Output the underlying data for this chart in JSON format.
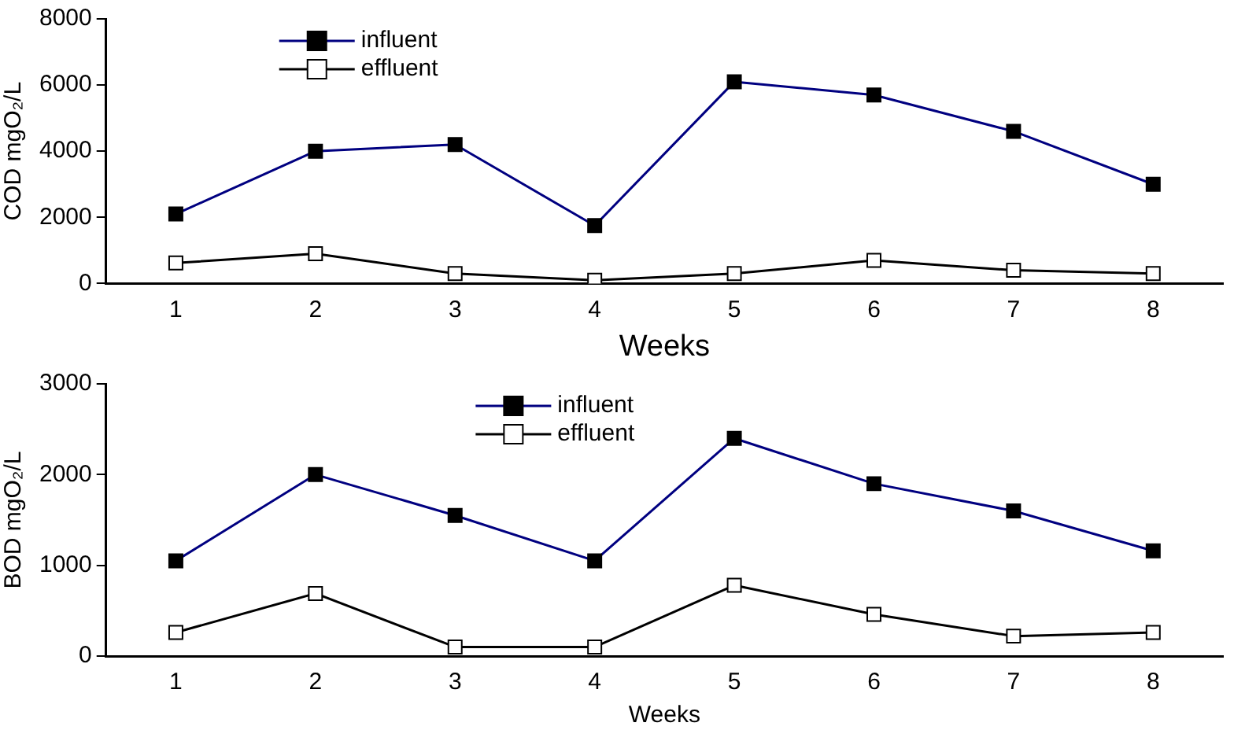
{
  "chart_data": [
    {
      "type": "line",
      "xlabel": "Weeks",
      "ylabel": "COD mgO₂/L",
      "categories": [
        "1",
        "2",
        "3",
        "4",
        "5",
        "6",
        "7",
        "8"
      ],
      "ylim": [
        0,
        8000
      ],
      "yticks": [
        0,
        2000,
        4000,
        6000,
        8000
      ],
      "grid": false,
      "legend": "top left",
      "marker": "square",
      "line_style": "solid",
      "series": [
        {
          "name": "influent",
          "color": "#000080",
          "values": [
            2100,
            4000,
            4200,
            1750,
            6100,
            5700,
            4600,
            3000
          ]
        },
        {
          "name": "effluent",
          "color": "#000000",
          "values": [
            620,
            900,
            300,
            100,
            300,
            700,
            400,
            300
          ]
        }
      ]
    },
    {
      "type": "line",
      "xlabel": "Weeks",
      "ylabel": "BOD mgO₂/L",
      "categories": [
        "1",
        "2",
        "3",
        "4",
        "5",
        "6",
        "7",
        "8"
      ],
      "ylim": [
        0,
        3000
      ],
      "yticks": [
        0,
        1000,
        2000,
        3000
      ],
      "grid": false,
      "legend": "top",
      "marker": "square",
      "line_style": "solid",
      "series": [
        {
          "name": "influent",
          "color": "#000080",
          "values": [
            1050,
            2000,
            1550,
            1050,
            2400,
            1900,
            1600,
            1160
          ]
        },
        {
          "name": "effluent",
          "color": "#000000",
          "values": [
            260,
            690,
            100,
            100,
            780,
            460,
            220,
            260
          ]
        }
      ]
    }
  ]
}
